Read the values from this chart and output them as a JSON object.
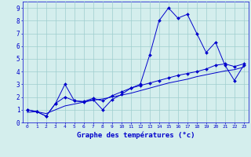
{
  "xlabel": "Graphe des températures (°c)",
  "background_color": "#d4eeed",
  "grid_color": "#9ecece",
  "line_color": "#0000cc",
  "x_ticks": [
    0,
    1,
    2,
    3,
    4,
    5,
    6,
    7,
    8,
    9,
    10,
    11,
    12,
    13,
    14,
    15,
    16,
    17,
    18,
    19,
    20,
    21,
    22,
    23
  ],
  "y_ticks": [
    0,
    1,
    2,
    3,
    4,
    5,
    6,
    7,
    8,
    9
  ],
  "xlim": [
    -0.5,
    23.5
  ],
  "ylim": [
    0,
    9.5
  ],
  "series1_x": [
    0,
    1,
    2,
    3,
    4,
    5,
    6,
    7,
    8,
    9,
    10,
    11,
    12,
    13,
    14,
    15,
    16,
    17,
    18,
    19,
    20,
    21,
    22,
    23
  ],
  "series1_y": [
    1.0,
    0.85,
    0.5,
    1.5,
    3.0,
    1.7,
    1.6,
    1.8,
    1.0,
    1.8,
    2.2,
    2.7,
    3.0,
    5.3,
    8.0,
    9.0,
    8.2,
    8.5,
    7.0,
    5.5,
    6.3,
    4.5,
    3.3,
    4.5
  ],
  "series2_x": [
    0,
    1,
    2,
    3,
    4,
    5,
    6,
    7,
    8,
    9,
    10,
    11,
    12,
    13,
    14,
    15,
    16,
    17,
    18,
    19,
    20,
    21,
    22,
    23
  ],
  "series2_y": [
    1.0,
    0.85,
    0.5,
    1.5,
    2.0,
    1.7,
    1.65,
    1.9,
    1.7,
    2.1,
    2.4,
    2.7,
    2.9,
    3.1,
    3.3,
    3.5,
    3.7,
    3.85,
    4.0,
    4.2,
    4.5,
    4.6,
    4.4,
    4.6
  ],
  "series3_x": [
    0,
    1,
    2,
    3,
    4,
    5,
    6,
    7,
    8,
    9,
    10,
    11,
    12,
    13,
    14,
    15,
    16,
    17,
    18,
    19,
    20,
    21,
    22,
    23
  ],
  "series3_y": [
    0.8,
    0.85,
    0.7,
    1.0,
    1.3,
    1.45,
    1.6,
    1.75,
    1.85,
    2.0,
    2.15,
    2.3,
    2.5,
    2.7,
    2.9,
    3.1,
    3.25,
    3.4,
    3.6,
    3.75,
    3.9,
    4.05,
    4.15,
    4.35
  ],
  "xlabel_fontsize": 6.5,
  "tick_fontsize_x": 4.5,
  "tick_fontsize_y": 5.5
}
